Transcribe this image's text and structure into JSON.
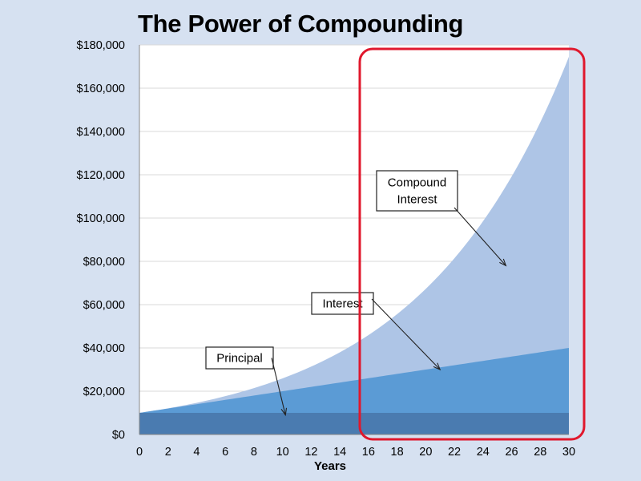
{
  "chart_data": {
    "type": "area",
    "title": "The Power of Compounding",
    "xlabel": "Years",
    "ylabel": "",
    "xlim": [
      0,
      30
    ],
    "ylim": [
      0,
      180000
    ],
    "x_ticks": [
      0,
      2,
      4,
      6,
      8,
      10,
      12,
      14,
      16,
      18,
      20,
      22,
      24,
      26,
      28,
      30
    ],
    "y_ticks": [
      0,
      20000,
      40000,
      60000,
      80000,
      100000,
      120000,
      140000,
      160000,
      180000
    ],
    "y_tick_labels": [
      "$0",
      "$20,000",
      "$40,000",
      "$60,000",
      "$80,000",
      "$100,000",
      "$120,000",
      "$140,000",
      "$160,000",
      "$180,000"
    ],
    "x_tick_labels": [
      "0",
      "2",
      "4",
      "6",
      "8",
      "10",
      "12",
      "14",
      "16",
      "18",
      "20",
      "22",
      "24",
      "26",
      "28",
      "30"
    ],
    "principal": 10000,
    "simple_rate": 0.1,
    "compound_rate": 0.1,
    "series": [
      {
        "key": "principal",
        "color": "#4a7bb0"
      },
      {
        "key": "interest",
        "color": "#5b9bd5"
      },
      {
        "key": "compound",
        "color": "#aec5e6"
      }
    ],
    "annotations": [
      {
        "key": "principal",
        "label": "Principal",
        "target_x": 10.2,
        "target_y": 9000
      },
      {
        "key": "interest",
        "label": "Interest",
        "target_x": 21,
        "target_y": 30000
      },
      {
        "key": "compound",
        "label": "Compound\nInterest",
        "target_x": 25.6,
        "target_y": 78000
      }
    ],
    "grid": true,
    "highlight_color": "#e0182d"
  }
}
